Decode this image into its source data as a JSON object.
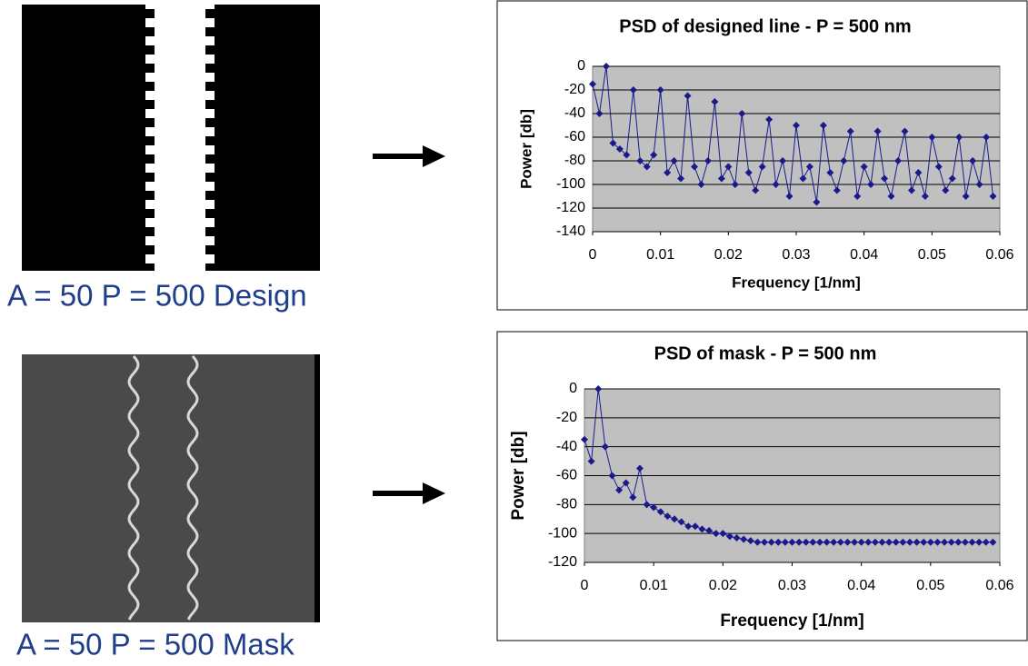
{
  "captions": [
    "A = 50 P = 500 Design",
    "A = 50 P = 500 Mask"
  ],
  "chart_data": [
    {
      "type": "line",
      "title": "PSD of designed line - P = 500 nm",
      "x_label": "Frequency [1/nm]",
      "y_label": "Power [db]",
      "xlim": [
        0,
        0.06
      ],
      "xticks": [
        0,
        0.01,
        0.02,
        0.03,
        0.04,
        0.05,
        0.06
      ],
      "ylim": [
        -140,
        0
      ],
      "yticks": [
        0,
        -20,
        -40,
        -60,
        -80,
        -100,
        -120,
        -140
      ],
      "grid": true,
      "x": [
        0,
        0.001,
        0.002,
        0.003,
        0.004,
        0.005,
        0.006,
        0.007,
        0.008,
        0.009,
        0.01,
        0.011,
        0.012,
        0.013,
        0.014,
        0.015,
        0.016,
        0.017,
        0.018,
        0.019,
        0.02,
        0.021,
        0.022,
        0.023,
        0.024,
        0.025,
        0.026,
        0.027,
        0.028,
        0.029,
        0.03,
        0.031,
        0.032,
        0.033,
        0.034,
        0.035,
        0.036,
        0.037,
        0.038,
        0.039,
        0.04,
        0.041,
        0.042,
        0.043,
        0.044,
        0.045,
        0.046,
        0.047,
        0.048,
        0.049,
        0.05,
        0.051,
        0.052,
        0.053,
        0.054,
        0.055,
        0.056,
        0.057,
        0.058,
        0.059
      ],
      "series": [
        {
          "color": "#1a1a8c",
          "values": [
            -15,
            -40,
            0,
            -65,
            -70,
            -75,
            -20,
            -80,
            -85,
            -75,
            -20,
            -90,
            -80,
            -95,
            -25,
            -85,
            -100,
            -80,
            -30,
            -95,
            -85,
            -100,
            -40,
            -90,
            -105,
            -85,
            -45,
            -100,
            -80,
            -110,
            -50,
            -95,
            -85,
            -115,
            -50,
            -90,
            -105,
            -80,
            -55,
            -110,
            -85,
            -100,
            -55,
            -95,
            -110,
            -80,
            -55,
            -105,
            -90,
            -110,
            -60,
            -85,
            -105,
            -95,
            -60,
            -110,
            -80,
            -100,
            -60,
            -110
          ]
        }
      ]
    },
    {
      "type": "line",
      "title": "PSD of mask - P = 500 nm",
      "x_label": "Frequency [1/nm]",
      "y_label": "Power [db]",
      "xlim": [
        0,
        0.06
      ],
      "xticks": [
        0,
        0.01,
        0.02,
        0.03,
        0.04,
        0.05,
        0.06
      ],
      "ylim": [
        -120,
        0
      ],
      "yticks": [
        0,
        -20,
        -40,
        -60,
        -80,
        -100,
        -120
      ],
      "grid": true,
      "x": [
        0,
        0.001,
        0.002,
        0.003,
        0.004,
        0.005,
        0.006,
        0.007,
        0.008,
        0.009,
        0.01,
        0.011,
        0.012,
        0.013,
        0.014,
        0.015,
        0.016,
        0.017,
        0.018,
        0.019,
        0.02,
        0.021,
        0.022,
        0.023,
        0.024,
        0.025,
        0.026,
        0.027,
        0.028,
        0.029,
        0.03,
        0.031,
        0.032,
        0.033,
        0.034,
        0.035,
        0.036,
        0.037,
        0.038,
        0.039,
        0.04,
        0.041,
        0.042,
        0.043,
        0.044,
        0.045,
        0.046,
        0.047,
        0.048,
        0.049,
        0.05,
        0.051,
        0.052,
        0.053,
        0.054,
        0.055,
        0.056,
        0.057,
        0.058,
        0.059
      ],
      "series": [
        {
          "color": "#1a1a8c",
          "values": [
            -35,
            -50,
            0,
            -40,
            -60,
            -70,
            -65,
            -75,
            -55,
            -80,
            -82,
            -85,
            -88,
            -90,
            -92,
            -95,
            -95,
            -97,
            -98,
            -100,
            -100,
            -102,
            -103,
            -104,
            -105,
            -106,
            -106,
            -106,
            -106,
            -106,
            -106,
            -106,
            -106,
            -106,
            -106,
            -106,
            -106,
            -106,
            -106,
            -106,
            -106,
            -106,
            -106,
            -106,
            -106,
            -106,
            -106,
            -106,
            -106,
            -106,
            -106,
            -106,
            -106,
            -106,
            -106,
            -106,
            -106,
            -106,
            -106,
            -106
          ]
        }
      ]
    }
  ]
}
